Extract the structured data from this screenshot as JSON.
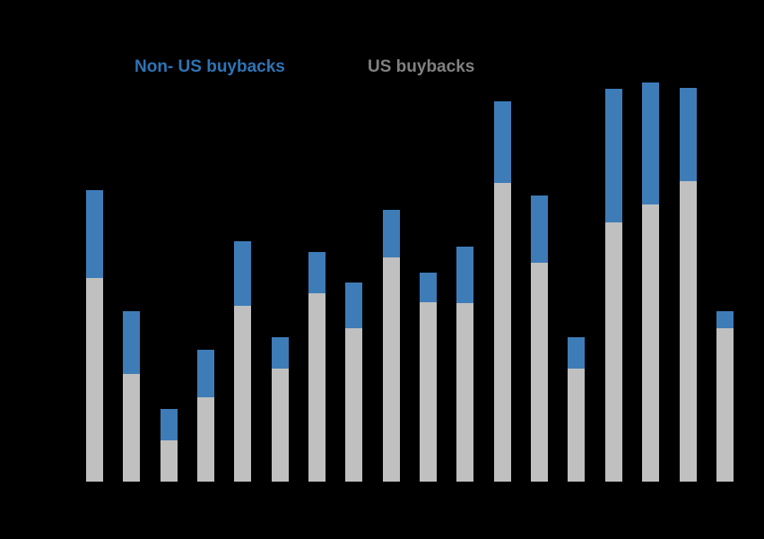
{
  "chart_data": {
    "type": "bar",
    "stacked": true,
    "title": "",
    "categories": [
      "",
      "",
      "",
      "",
      "",
      "",
      "",
      "",
      "",
      "",
      "",
      "",
      "",
      "",
      "",
      "",
      "",
      ""
    ],
    "series": [
      {
        "name": "US buybacks",
        "color": "#c0c0c0",
        "values": [
          227,
          120,
          46,
          94,
          196,
          126,
          210,
          171,
          250,
          200,
          199,
          333,
          244,
          126,
          289,
          309,
          335,
          171
        ]
      },
      {
        "name": "Non- US buybacks",
        "color": "#3e7cb8",
        "values": [
          98,
          70,
          35,
          53,
          72,
          35,
          46,
          51,
          53,
          33,
          63,
          91,
          75,
          35,
          149,
          136,
          104,
          19
        ]
      }
    ],
    "ylim": [
      0,
      445
    ],
    "grid": false,
    "legend_position": "top",
    "background": "#000000"
  },
  "legend": {
    "non_us_label": "Non- US buybacks",
    "non_us_color": "#2e74b5",
    "us_label": "US buybacks",
    "us_color": "#808080"
  }
}
